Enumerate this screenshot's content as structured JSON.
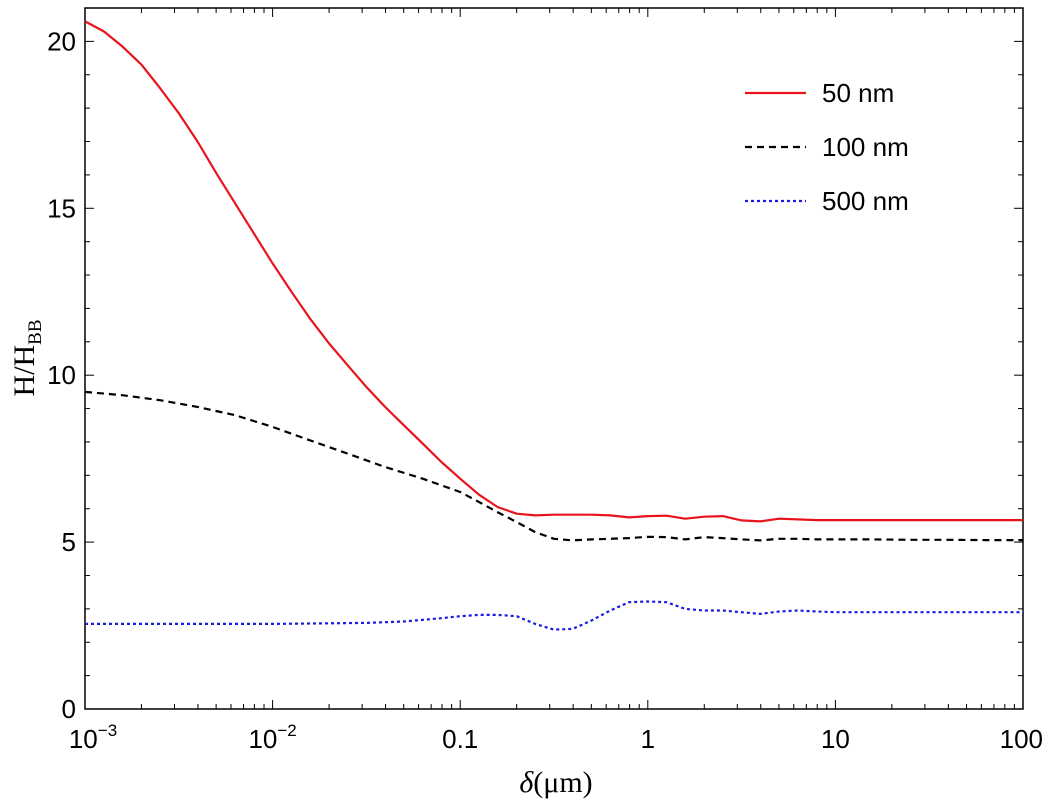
{
  "chart_data": {
    "type": "line",
    "title": "",
    "xlabel": {
      "symbol": "δ",
      "unit": "(μm)"
    },
    "ylabel": {
      "main": "H/H",
      "subscript": "BB"
    },
    "xscale": "log",
    "xlim": [
      0.001,
      100
    ],
    "ylim": [
      0,
      21
    ],
    "grid": false,
    "legend_position": "top-right",
    "xticks": [
      {
        "value": 0.001,
        "base": "10",
        "exp": "−3"
      },
      {
        "value": 0.01,
        "base": "10",
        "exp": "−2"
      },
      {
        "value": 0.1,
        "label": "0.1"
      },
      {
        "value": 1,
        "label": "1"
      },
      {
        "value": 10,
        "label": "10"
      },
      {
        "value": 100,
        "label": "100"
      }
    ],
    "yticks": [
      {
        "value": 0,
        "label": "0"
      },
      {
        "value": 5,
        "label": "5"
      },
      {
        "value": 10,
        "label": "10"
      },
      {
        "value": 15,
        "label": "15"
      },
      {
        "value": 20,
        "label": "20"
      }
    ],
    "series": [
      {
        "name": "50 nm",
        "color": "#e8141c",
        "style": "solid",
        "x": [
          0.001,
          0.00126,
          0.00158,
          0.002,
          0.00251,
          0.00316,
          0.00398,
          0.00501,
          0.00631,
          0.00794,
          0.01,
          0.0126,
          0.0158,
          0.02,
          0.0251,
          0.0316,
          0.0398,
          0.0501,
          0.0631,
          0.0794,
          0.1,
          0.126,
          0.158,
          0.2,
          0.251,
          0.316,
          0.398,
          0.501,
          0.631,
          0.794,
          1.0,
          1.26,
          1.58,
          2.0,
          2.51,
          3.16,
          3.98,
          5.01,
          6.31,
          7.94,
          10,
          15.8,
          25.1,
          39.8,
          63.1,
          100
        ],
        "y": [
          20.6,
          20.3,
          19.85,
          19.3,
          18.6,
          17.85,
          17.0,
          16.05,
          15.15,
          14.25,
          13.35,
          12.5,
          11.7,
          10.95,
          10.3,
          9.65,
          9.05,
          8.5,
          7.95,
          7.4,
          6.9,
          6.42,
          6.05,
          5.85,
          5.8,
          5.82,
          5.82,
          5.82,
          5.8,
          5.74,
          5.78,
          5.79,
          5.7,
          5.76,
          5.78,
          5.65,
          5.62,
          5.7,
          5.68,
          5.66,
          5.66,
          5.66,
          5.66,
          5.66,
          5.66,
          5.66
        ]
      },
      {
        "name": "100 nm",
        "color": "#000000",
        "style": "dashed",
        "x": [
          0.001,
          0.00158,
          0.00251,
          0.00398,
          0.00631,
          0.01,
          0.0158,
          0.0251,
          0.0398,
          0.0631,
          0.1,
          0.126,
          0.158,
          0.2,
          0.251,
          0.316,
          0.398,
          0.501,
          0.631,
          0.794,
          1.0,
          1.26,
          1.58,
          2.0,
          2.51,
          3.16,
          3.98,
          5.01,
          6.31,
          7.94,
          10,
          15.8,
          25.1,
          39.8,
          63.1,
          100
        ],
        "y": [
          9.5,
          9.4,
          9.25,
          9.05,
          8.8,
          8.45,
          8.05,
          7.65,
          7.25,
          6.9,
          6.5,
          6.2,
          5.9,
          5.6,
          5.3,
          5.1,
          5.05,
          5.08,
          5.1,
          5.12,
          5.16,
          5.15,
          5.08,
          5.15,
          5.12,
          5.08,
          5.05,
          5.1,
          5.1,
          5.08,
          5.08,
          5.08,
          5.07,
          5.07,
          5.06,
          5.06
        ]
      },
      {
        "name": "500 nm",
        "color": "#1a1ae6",
        "style": "dotted",
        "x": [
          0.001,
          0.00316,
          0.01,
          0.0316,
          0.05,
          0.0794,
          0.1,
          0.126,
          0.158,
          0.2,
          0.251,
          0.316,
          0.398,
          0.501,
          0.631,
          0.794,
          1.0,
          1.26,
          1.58,
          2.0,
          2.51,
          3.16,
          3.98,
          5.01,
          6.31,
          7.94,
          10,
          15.8,
          25.1,
          39.8,
          63.1,
          100
        ],
        "y": [
          2.55,
          2.55,
          2.55,
          2.58,
          2.62,
          2.72,
          2.78,
          2.82,
          2.82,
          2.78,
          2.55,
          2.38,
          2.4,
          2.65,
          2.95,
          3.2,
          3.22,
          3.2,
          3.0,
          2.95,
          2.95,
          2.9,
          2.85,
          2.92,
          2.95,
          2.92,
          2.9,
          2.9,
          2.9,
          2.9,
          2.9,
          2.9
        ]
      }
    ]
  }
}
